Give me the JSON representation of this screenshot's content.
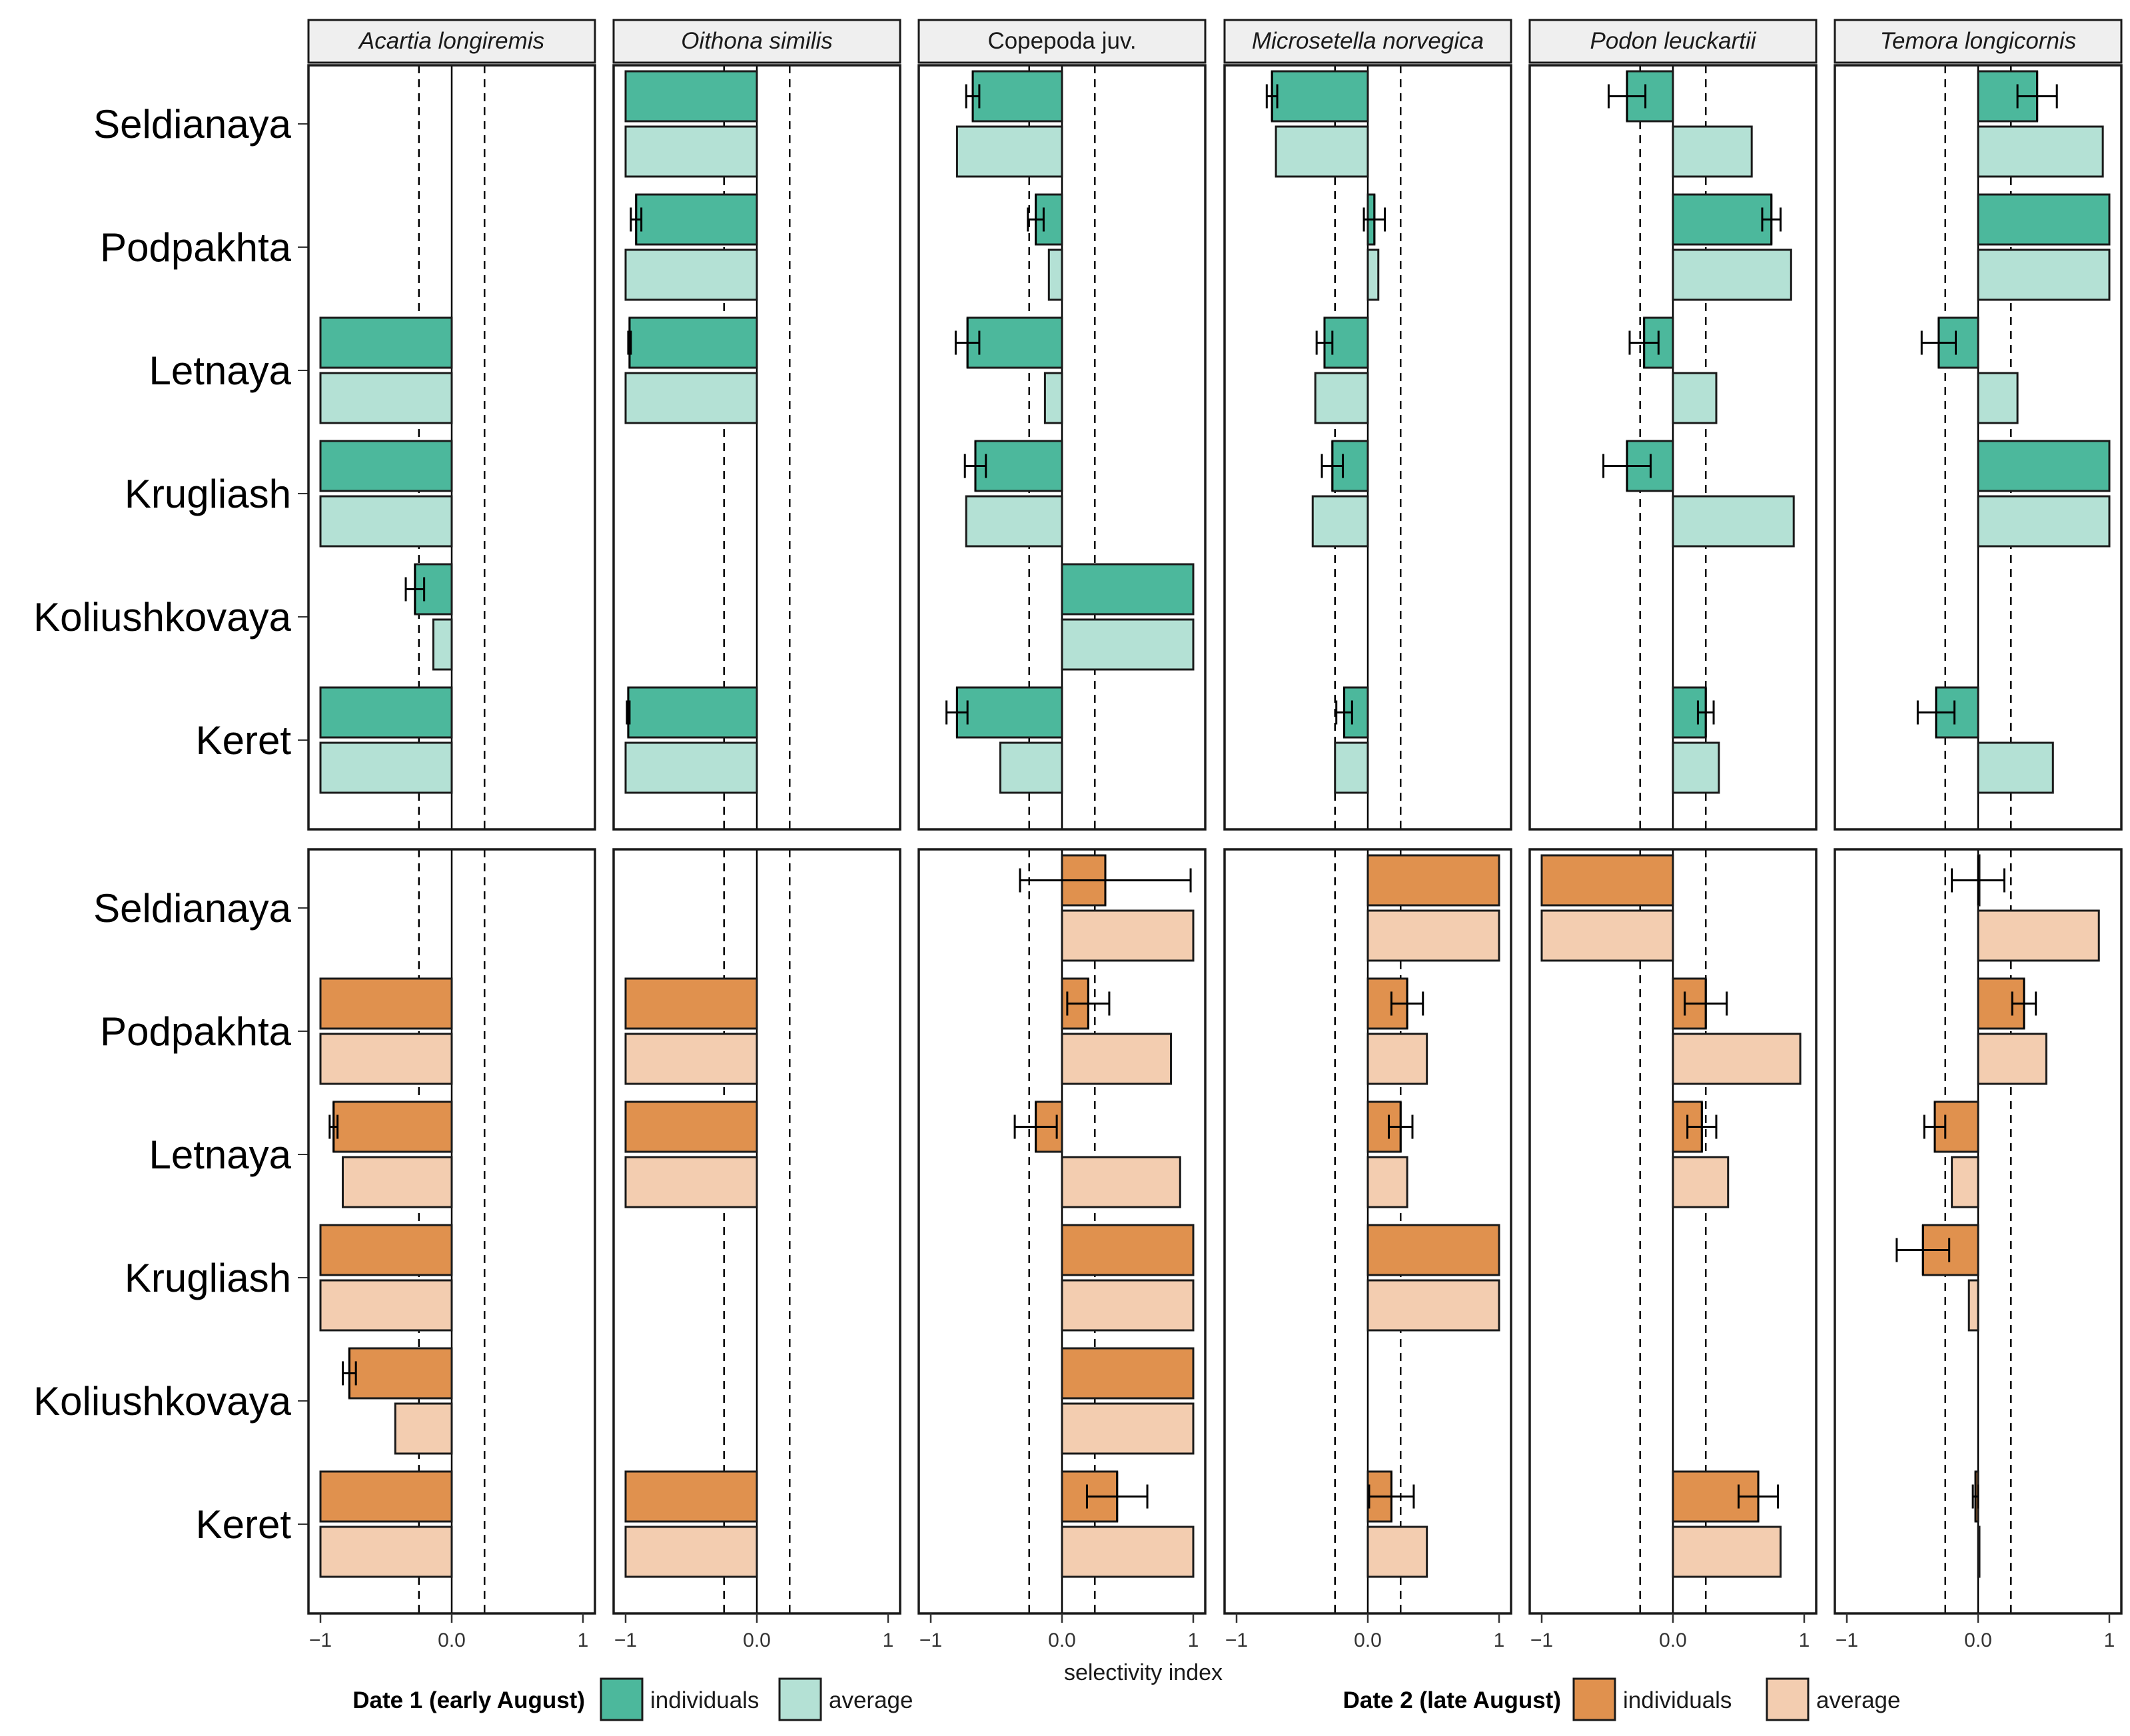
{
  "chart_data": {
    "type": "bar",
    "orientation": "horizontal",
    "xlabel": "selectivity index",
    "xlim": [
      -1,
      1
    ],
    "x_ticks": [
      -1,
      0,
      1
    ],
    "x_tick_labels": [
      "−1",
      "0.0",
      "1"
    ],
    "reference_lines": [
      -0.25,
      0.25
    ],
    "zero_line": 0,
    "grid": false,
    "legend_position": "bottom",
    "species": [
      {
        "name": "Acartia longiremis",
        "italic": true
      },
      {
        "name": "Oithona similis",
        "italic": true
      },
      {
        "name": "Copepoda juv.",
        "italic": false
      },
      {
        "name": "Microsetella norvegica",
        "italic": true
      },
      {
        "name": "Podon leuckartii",
        "italic": true
      },
      {
        "name": "Temora longicornis",
        "italic": true
      }
    ],
    "sites": [
      "Seldianaya",
      "Podpakhta",
      "Letnaya",
      "Krugliash",
      "Koliushkovaya",
      "Keret"
    ],
    "colors": {
      "date1_individuals": "#4cb89c",
      "date1_average": "#b4e1d5",
      "date2_individuals": "#e0914e",
      "date2_average": "#f3cdb0"
    },
    "legend": [
      {
        "title": "Date 1 (early August)",
        "entries": [
          {
            "label": "individuals",
            "color": "#4cb89c"
          },
          {
            "label": "average",
            "color": "#b4e1d5"
          }
        ]
      },
      {
        "title": "Date 2 (late August)",
        "entries": [
          {
            "label": "individuals",
            "color": "#e0914e"
          },
          {
            "label": "average",
            "color": "#f3cdb0"
          }
        ]
      }
    ],
    "rows": [
      {
        "date": "Date 1 (early August)",
        "panels": [
          {
            "species": "Acartia longiremis",
            "data": [
              {
                "site": "Seldianaya",
                "ind": null,
                "ind_err": null,
                "avg": null
              },
              {
                "site": "Podpakhta",
                "ind": null,
                "ind_err": null,
                "avg": null
              },
              {
                "site": "Letnaya",
                "ind": -1,
                "ind_err": null,
                "avg": -1
              },
              {
                "site": "Krugliash",
                "ind": -1,
                "ind_err": null,
                "avg": -1
              },
              {
                "site": "Koliushkovaya",
                "ind": -0.28,
                "ind_err": 0.07,
                "avg": -0.14
              },
              {
                "site": "Keret",
                "ind": -1,
                "ind_err": null,
                "avg": -1
              }
            ]
          },
          {
            "species": "Oithona similis",
            "data": [
              {
                "site": "Seldianaya",
                "ind": -1,
                "ind_err": null,
                "avg": -1
              },
              {
                "site": "Podpakhta",
                "ind": -0.92,
                "ind_err": 0.04,
                "avg": -1
              },
              {
                "site": "Letnaya",
                "ind": -0.97,
                "ind_err": 0.01,
                "avg": -1
              },
              {
                "site": "Krugliash",
                "ind": null,
                "ind_err": null,
                "avg": null
              },
              {
                "site": "Koliushkovaya",
                "ind": null,
                "ind_err": null,
                "avg": null
              },
              {
                "site": "Keret",
                "ind": -0.98,
                "ind_err": 0.01,
                "avg": -1
              }
            ]
          },
          {
            "species": "Copepoda juv.",
            "data": [
              {
                "site": "Seldianaya",
                "ind": -0.68,
                "ind_err": 0.05,
                "avg": -0.8
              },
              {
                "site": "Podpakhta",
                "ind": -0.2,
                "ind_err": 0.06,
                "avg": -0.1
              },
              {
                "site": "Letnaya",
                "ind": -0.72,
                "ind_err": 0.09,
                "avg": -0.13
              },
              {
                "site": "Krugliash",
                "ind": -0.66,
                "ind_err": 0.08,
                "avg": -0.73
              },
              {
                "site": "Koliushkovaya",
                "ind": 1,
                "ind_err": null,
                "avg": 1
              },
              {
                "site": "Keret",
                "ind": -0.8,
                "ind_err": 0.08,
                "avg": -0.47
              }
            ]
          },
          {
            "species": "Microsetella norvegica",
            "data": [
              {
                "site": "Seldianaya",
                "ind": -0.73,
                "ind_err": 0.04,
                "avg": -0.7
              },
              {
                "site": "Podpakhta",
                "ind": 0.05,
                "ind_err": 0.08,
                "avg": 0.08
              },
              {
                "site": "Letnaya",
                "ind": -0.33,
                "ind_err": 0.06,
                "avg": -0.4
              },
              {
                "site": "Krugliash",
                "ind": -0.27,
                "ind_err": 0.08,
                "avg": -0.42
              },
              {
                "site": "Koliushkovaya",
                "ind": null,
                "ind_err": null,
                "avg": null
              },
              {
                "site": "Keret",
                "ind": -0.18,
                "ind_err": 0.06,
                "avg": -0.25
              }
            ]
          },
          {
            "species": "Podon leuckartii",
            "data": [
              {
                "site": "Seldianaya",
                "ind": -0.35,
                "ind_err": 0.14,
                "avg": 0.6
              },
              {
                "site": "Podpakhta",
                "ind": 0.75,
                "ind_err": 0.07,
                "avg": 0.9
              },
              {
                "site": "Letnaya",
                "ind": -0.22,
                "ind_err": 0.11,
                "avg": 0.33
              },
              {
                "site": "Krugliash",
                "ind": -0.35,
                "ind_err": 0.18,
                "avg": 0.92
              },
              {
                "site": "Koliushkovaya",
                "ind": null,
                "ind_err": null,
                "avg": null
              },
              {
                "site": "Keret",
                "ind": 0.25,
                "ind_err": 0.06,
                "avg": 0.35
              }
            ]
          },
          {
            "species": "Temora longicornis",
            "data": [
              {
                "site": "Seldianaya",
                "ind": 0.45,
                "ind_err": 0.15,
                "avg": 0.95
              },
              {
                "site": "Podpakhta",
                "ind": 1,
                "ind_err": null,
                "avg": 1
              },
              {
                "site": "Letnaya",
                "ind": -0.3,
                "ind_err": 0.13,
                "avg": 0.3
              },
              {
                "site": "Krugliash",
                "ind": 1,
                "ind_err": null,
                "avg": 1
              },
              {
                "site": "Koliushkovaya",
                "ind": null,
                "ind_err": null,
                "avg": null
              },
              {
                "site": "Keret",
                "ind": -0.32,
                "ind_err": 0.14,
                "avg": 0.57
              }
            ]
          }
        ]
      },
      {
        "date": "Date 2 (late August)",
        "panels": [
          {
            "species": "Acartia longiremis",
            "data": [
              {
                "site": "Seldianaya",
                "ind": null,
                "ind_err": null,
                "avg": null
              },
              {
                "site": "Podpakhta",
                "ind": -1,
                "ind_err": null,
                "avg": -1
              },
              {
                "site": "Letnaya",
                "ind": -0.9,
                "ind_err": 0.03,
                "avg": -0.83
              },
              {
                "site": "Krugliash",
                "ind": -1,
                "ind_err": null,
                "avg": -1
              },
              {
                "site": "Koliushkovaya",
                "ind": -0.78,
                "ind_err": 0.05,
                "avg": -0.43
              },
              {
                "site": "Keret",
                "ind": -1,
                "ind_err": null,
                "avg": -1
              }
            ]
          },
          {
            "species": "Oithona similis",
            "data": [
              {
                "site": "Seldianaya",
                "ind": null,
                "ind_err": null,
                "avg": null
              },
              {
                "site": "Podpakhta",
                "ind": -1,
                "ind_err": null,
                "avg": -1
              },
              {
                "site": "Letnaya",
                "ind": -1,
                "ind_err": null,
                "avg": -1
              },
              {
                "site": "Krugliash",
                "ind": null,
                "ind_err": null,
                "avg": null
              },
              {
                "site": "Koliushkovaya",
                "ind": null,
                "ind_err": null,
                "avg": null
              },
              {
                "site": "Keret",
                "ind": -1,
                "ind_err": null,
                "avg": -1
              }
            ]
          },
          {
            "species": "Copepoda juv.",
            "data": [
              {
                "site": "Seldianaya",
                "ind": 0.33,
                "ind_err": 0.65,
                "avg": 1
              },
              {
                "site": "Podpakhta",
                "ind": 0.2,
                "ind_err": 0.16,
                "avg": 0.83
              },
              {
                "site": "Letnaya",
                "ind": -0.2,
                "ind_err": 0.16,
                "avg": 0.9
              },
              {
                "site": "Krugliash",
                "ind": 1,
                "ind_err": null,
                "avg": 1
              },
              {
                "site": "Koliushkovaya",
                "ind": 1,
                "ind_err": null,
                "avg": 1
              },
              {
                "site": "Keret",
                "ind": 0.42,
                "ind_err": 0.23,
                "avg": 1
              }
            ]
          },
          {
            "species": "Microsetella norvegica",
            "data": [
              {
                "site": "Seldianaya",
                "ind": 1,
                "ind_err": null,
                "avg": 1
              },
              {
                "site": "Podpakhta",
                "ind": 0.3,
                "ind_err": 0.12,
                "avg": 0.45
              },
              {
                "site": "Letnaya",
                "ind": 0.25,
                "ind_err": 0.09,
                "avg": 0.3
              },
              {
                "site": "Krugliash",
                "ind": 1,
                "ind_err": null,
                "avg": 1
              },
              {
                "site": "Koliushkovaya",
                "ind": null,
                "ind_err": null,
                "avg": null
              },
              {
                "site": "Keret",
                "ind": 0.18,
                "ind_err": 0.17,
                "avg": 0.45
              }
            ]
          },
          {
            "species": "Podon leuckartii",
            "data": [
              {
                "site": "Seldianaya",
                "ind": -1,
                "ind_err": null,
                "avg": -1
              },
              {
                "site": "Podpakhta",
                "ind": 0.25,
                "ind_err": 0.16,
                "avg": 0.97
              },
              {
                "site": "Letnaya",
                "ind": 0.22,
                "ind_err": 0.11,
                "avg": 0.42
              },
              {
                "site": "Krugliash",
                "ind": null,
                "ind_err": null,
                "avg": null
              },
              {
                "site": "Koliushkovaya",
                "ind": null,
                "ind_err": null,
                "avg": null
              },
              {
                "site": "Keret",
                "ind": 0.65,
                "ind_err": 0.15,
                "avg": 0.82
              }
            ]
          },
          {
            "species": "Temora longicornis",
            "data": [
              {
                "site": "Seldianaya",
                "ind": 0,
                "ind_err": 0.2,
                "avg": 0.92
              },
              {
                "site": "Podpakhta",
                "ind": 0.35,
                "ind_err": 0.09,
                "avg": 0.52
              },
              {
                "site": "Letnaya",
                "ind": -0.33,
                "ind_err": 0.08,
                "avg": -0.2
              },
              {
                "site": "Krugliash",
                "ind": -0.42,
                "ind_err": 0.2,
                "avg": -0.07
              },
              {
                "site": "Koliushkovaya",
                "ind": null,
                "ind_err": null,
                "avg": null
              },
              {
                "site": "Keret",
                "ind": -0.02,
                "ind_err": 0.02,
                "avg": 0
              }
            ]
          }
        ]
      }
    ]
  }
}
